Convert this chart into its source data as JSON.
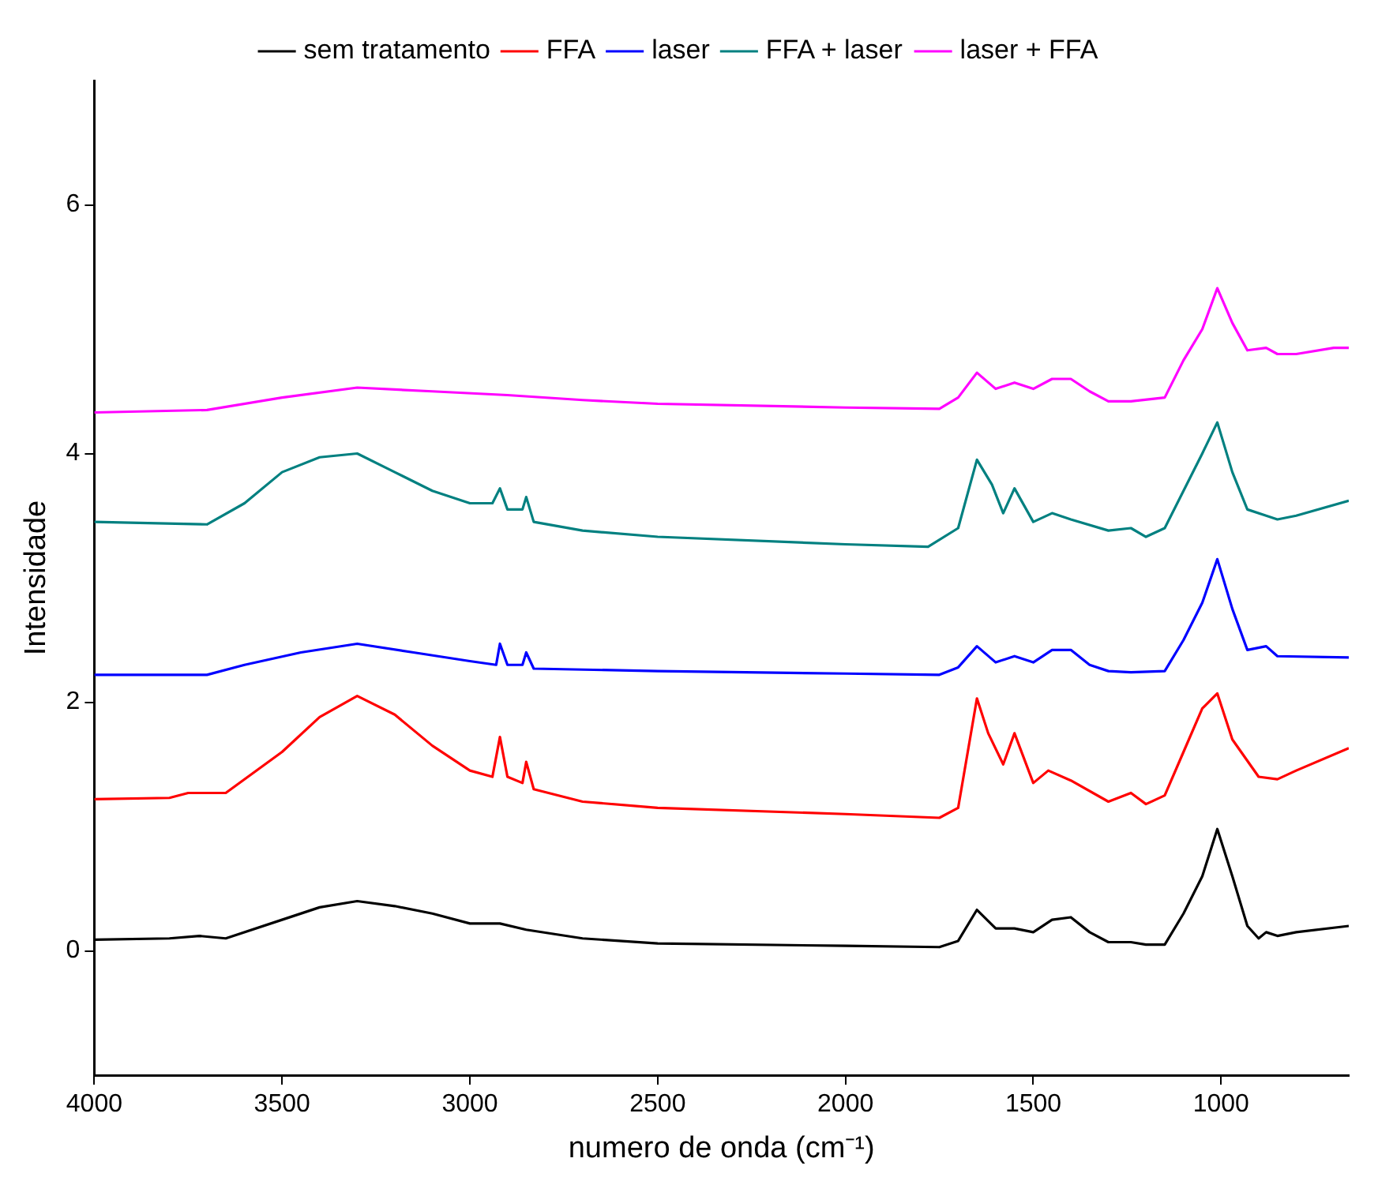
{
  "chart_data": {
    "type": "line",
    "xlabel": "numero de onda (cm⁻¹)",
    "ylabel": "Intensidade",
    "xlim": [
      4000,
      660
    ],
    "xticks": [
      4000,
      3500,
      3000,
      2500,
      2000,
      1500,
      1000
    ],
    "ylim": [
      -1,
      7
    ],
    "yticks": [
      0,
      2,
      4,
      6
    ],
    "grid": false,
    "legend": "top",
    "marker": "none",
    "line_style": "solid",
    "series": [
      {
        "name": "sem tratamento",
        "color": "#000000",
        "x": [
          4000,
          3800,
          3720,
          3650,
          3500,
          3400,
          3300,
          3200,
          3100,
          3000,
          2920,
          2850,
          2700,
          2500,
          2000,
          1750,
          1700,
          1650,
          1600,
          1550,
          1500,
          1450,
          1400,
          1350,
          1300,
          1240,
          1200,
          1150,
          1100,
          1050,
          1010,
          970,
          930,
          900,
          880,
          850,
          800,
          660
        ],
        "values": [
          0.09,
          0.1,
          0.12,
          0.1,
          0.25,
          0.35,
          0.4,
          0.36,
          0.3,
          0.22,
          0.22,
          0.17,
          0.1,
          0.06,
          0.04,
          0.03,
          0.08,
          0.33,
          0.18,
          0.18,
          0.15,
          0.25,
          0.27,
          0.15,
          0.07,
          0.07,
          0.05,
          0.05,
          0.3,
          0.6,
          0.98,
          0.6,
          0.2,
          0.1,
          0.15,
          0.12,
          0.15,
          0.2
        ]
      },
      {
        "name": "FFA",
        "color": "#ff0000",
        "x": [
          4000,
          3800,
          3750,
          3650,
          3500,
          3400,
          3300,
          3200,
          3100,
          3000,
          2940,
          2920,
          2900,
          2860,
          2850,
          2830,
          2700,
          2500,
          2000,
          1750,
          1700,
          1650,
          1620,
          1580,
          1550,
          1500,
          1460,
          1400,
          1300,
          1240,
          1200,
          1150,
          1100,
          1050,
          1010,
          970,
          900,
          850,
          800,
          660
        ],
        "values": [
          1.22,
          1.23,
          1.27,
          1.27,
          1.6,
          1.88,
          2.05,
          1.9,
          1.65,
          1.45,
          1.4,
          1.72,
          1.4,
          1.35,
          1.52,
          1.3,
          1.2,
          1.15,
          1.1,
          1.07,
          1.15,
          2.03,
          1.75,
          1.5,
          1.75,
          1.35,
          1.45,
          1.37,
          1.2,
          1.27,
          1.18,
          1.25,
          1.6,
          1.95,
          2.07,
          1.7,
          1.4,
          1.38,
          1.45,
          1.63
        ]
      },
      {
        "name": "laser",
        "color": "#0000ff",
        "x": [
          4000,
          3700,
          3600,
          3450,
          3300,
          3150,
          3000,
          2930,
          2920,
          2900,
          2860,
          2850,
          2830,
          2500,
          2000,
          1750,
          1700,
          1650,
          1600,
          1550,
          1500,
          1450,
          1400,
          1350,
          1300,
          1240,
          1150,
          1100,
          1050,
          1010,
          970,
          930,
          880,
          850,
          660
        ],
        "values": [
          2.22,
          2.22,
          2.3,
          2.4,
          2.47,
          2.4,
          2.33,
          2.3,
          2.47,
          2.3,
          2.3,
          2.4,
          2.27,
          2.25,
          2.23,
          2.22,
          2.28,
          2.45,
          2.32,
          2.37,
          2.32,
          2.42,
          2.42,
          2.3,
          2.25,
          2.24,
          2.25,
          2.5,
          2.8,
          3.15,
          2.75,
          2.42,
          2.45,
          2.37,
          2.36
        ]
      },
      {
        "name": "FFA + laser",
        "color": "#008080",
        "x": [
          4000,
          3700,
          3600,
          3500,
          3400,
          3300,
          3200,
          3100,
          3000,
          2940,
          2920,
          2900,
          2860,
          2850,
          2830,
          2700,
          2500,
          2000,
          1780,
          1700,
          1650,
          1610,
          1580,
          1550,
          1500,
          1450,
          1400,
          1300,
          1240,
          1200,
          1150,
          1100,
          1050,
          1010,
          970,
          930,
          880,
          850,
          800,
          660
        ],
        "values": [
          3.45,
          3.43,
          3.6,
          3.85,
          3.97,
          4.0,
          3.85,
          3.7,
          3.6,
          3.6,
          3.72,
          3.55,
          3.55,
          3.65,
          3.45,
          3.38,
          3.33,
          3.27,
          3.25,
          3.4,
          3.95,
          3.75,
          3.52,
          3.72,
          3.45,
          3.52,
          3.47,
          3.38,
          3.4,
          3.33,
          3.4,
          3.7,
          4.0,
          4.25,
          3.85,
          3.55,
          3.5,
          3.47,
          3.5,
          3.62
        ]
      },
      {
        "name": "laser + FFA",
        "color": "#ff00ff",
        "x": [
          4000,
          3700,
          3500,
          3300,
          3100,
          2900,
          2700,
          2500,
          2000,
          1750,
          1700,
          1650,
          1600,
          1550,
          1500,
          1450,
          1400,
          1350,
          1300,
          1240,
          1150,
          1100,
          1050,
          1010,
          970,
          930,
          880,
          850,
          800,
          700,
          660
        ],
        "values": [
          4.33,
          4.35,
          4.45,
          4.53,
          4.5,
          4.47,
          4.43,
          4.4,
          4.37,
          4.36,
          4.45,
          4.65,
          4.52,
          4.57,
          4.52,
          4.6,
          4.6,
          4.5,
          4.42,
          4.42,
          4.45,
          4.75,
          5.0,
          5.33,
          5.05,
          4.83,
          4.85,
          4.8,
          4.8,
          4.85,
          4.85
        ]
      }
    ]
  }
}
